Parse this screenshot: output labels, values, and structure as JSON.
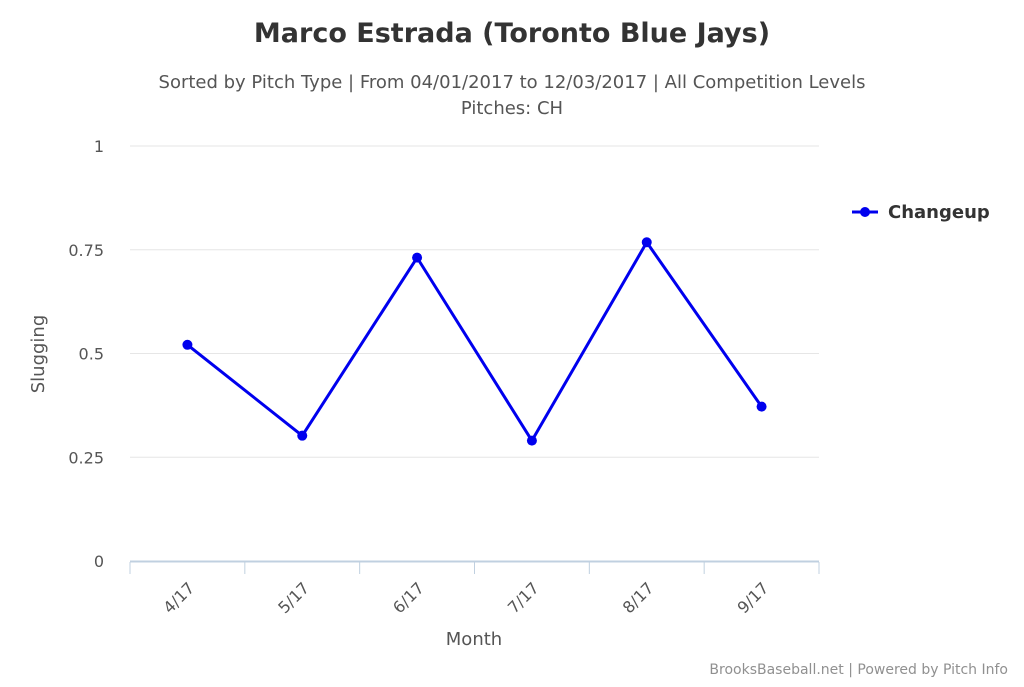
{
  "chart_data": {
    "type": "line",
    "title": "Marco Estrada (Toronto Blue Jays)",
    "subtitle_line1": "Sorted by Pitch Type | From 04/01/2017 to 12/03/2017 | All Competition Levels",
    "subtitle_line2": "Pitches: CH",
    "xlabel": "Month",
    "ylabel": "Slugging",
    "categories": [
      "4/17",
      "5/17",
      "6/17",
      "7/17",
      "8/17",
      "9/17"
    ],
    "yticks": [
      "0",
      "0.25",
      "0.5",
      "0.75",
      "1"
    ],
    "ylim": [
      0,
      1
    ],
    "grid": true,
    "legend_position": "right",
    "series": [
      {
        "name": "Changeup",
        "color": "#0000ee",
        "values": [
          0.521,
          0.302,
          0.731,
          0.29,
          0.768,
          0.372
        ]
      }
    ],
    "credits": "BrooksBaseball.net | Powered by Pitch Info"
  }
}
